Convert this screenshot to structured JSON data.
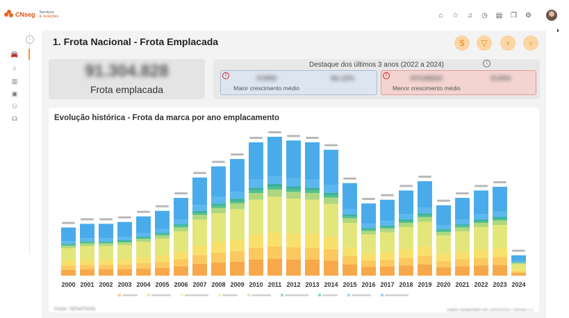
{
  "brand": {
    "logo_text": "CNseg",
    "sub_line1": "Serviços",
    "sub_line2": "& Soluções"
  },
  "page": {
    "title": "1. Frota Nacional - Frota Emplacada"
  },
  "kpi": {
    "value": "91.304.828",
    "label": "Frota emplacada"
  },
  "highlight": {
    "title": "Destaque dos últimos 3 anos (2022 a 2024)",
    "max": {
      "brand": "FORD",
      "value": "56.12%",
      "label": "Maior crescimento médio"
    },
    "min": {
      "brand": "HYUNDAI",
      "value": "8.04%",
      "label": "Menor crescimento médio"
    }
  },
  "footer": {
    "source": "Fonte: SENATRAN",
    "updated": "Dados atualizados em 12/02/2025 | Versão 1.1"
  },
  "chart_data": {
    "type": "bar",
    "stacked": true,
    "title": "Evolução histórica - Frota da marca por ano emplacamento",
    "categories": [
      "2000",
      "2001",
      "2002",
      "2003",
      "2004",
      "2005",
      "2006",
      "2007",
      "2008",
      "2009",
      "2010",
      "2011",
      "2012",
      "2013",
      "2014",
      "2015",
      "2016",
      "2017",
      "2018",
      "2019",
      "2020",
      "2021",
      "2022",
      "2023",
      "2024"
    ],
    "totals": [
      1.3,
      1.4,
      1.4,
      1.45,
      1.6,
      1.75,
      2.1,
      2.65,
      2.95,
      3.15,
      3.6,
      3.75,
      3.65,
      3.6,
      3.4,
      2.5,
      1.95,
      2.05,
      2.3,
      2.55,
      1.9,
      2.1,
      2.3,
      2.4,
      0.55
    ],
    "series_colors": [
      "#f7a84a",
      "#fbc95e",
      "#f8e06c",
      "#e3e67a",
      "#aed880",
      "#52c08a",
      "#3bb0a0",
      "#5bb8ee",
      "#49abea"
    ],
    "series_shares": [
      0.12,
      0.09,
      0.1,
      0.26,
      0.05,
      0.02,
      0.02,
      0.06,
      0.28
    ],
    "legend_position": "bottom",
    "grid": false
  },
  "icons": {
    "top": [
      "home-icon",
      "star-icon",
      "bell-icon",
      "clock-icon",
      "document-icon",
      "copy-icon",
      "gear-icon"
    ]
  }
}
